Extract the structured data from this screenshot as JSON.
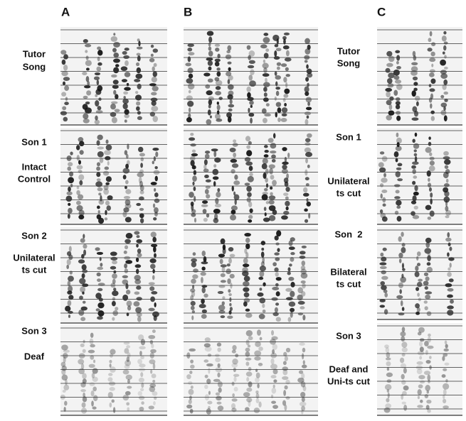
{
  "panels": [
    {
      "label": "A",
      "rows": [
        [
          "Tutor",
          "Song"
        ],
        [
          "Son 1"
        ],
        [
          "Intact",
          "Control"
        ],
        [
          "Son 2"
        ],
        [
          "Unilateral",
          "ts cut"
        ],
        [
          "Son 3"
        ],
        [
          "Deaf"
        ]
      ]
    },
    {
      "label": "B"
    },
    {
      "label": "C",
      "rows": [
        [
          "Tutor",
          "Song"
        ],
        [
          "Son 1"
        ],
        [
          "Unilateral",
          "ts cut"
        ],
        [
          "Son  2"
        ],
        [
          "Bilateral",
          "ts cut"
        ],
        [
          "Son 3"
        ],
        [
          "Deaf and",
          "Uni-ts cut"
        ]
      ]
    }
  ]
}
